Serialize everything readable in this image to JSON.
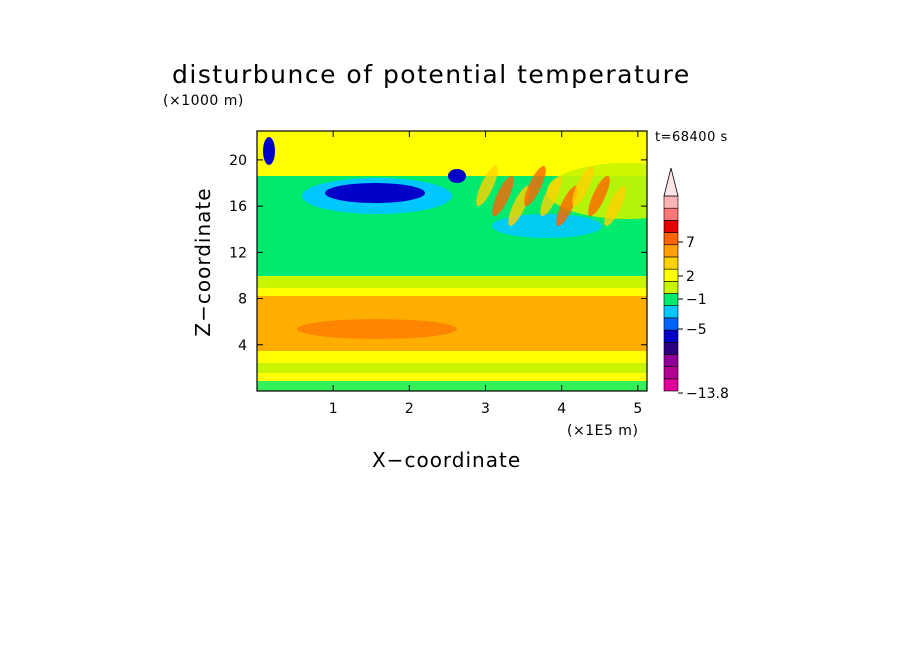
{
  "chart_data": {
    "type": "heatmap",
    "title": "disturbunce of potential temperature",
    "xlabel": "X−coordinate",
    "ylabel": "Z−coordinate",
    "x_unit": "(×1E5 m)",
    "y_unit": "(×1000 m)",
    "time_label": "t=68400 s",
    "xlim": [
      0,
      5.12
    ],
    "ylim": [
      0,
      22.5
    ],
    "x_ticks": [
      "1",
      "2",
      "3",
      "4",
      "5"
    ],
    "y_ticks": [
      "4",
      "8",
      "12",
      "16",
      "20"
    ],
    "colorbar": {
      "labels": [
        "7",
        "2",
        "−1",
        "−5",
        "−13.8"
      ],
      "max_value": 13.8,
      "min_value": -13.8,
      "extend_top": true,
      "colors": [
        "#e2009b",
        "#b20091",
        "#900097",
        "#2a0080",
        "#0000c8",
        "#0064ff",
        "#00c8ff",
        "#00eb6e",
        "#c8f500",
        "#ffff00",
        "#ffd200",
        "#ffa000",
        "#ff6400",
        "#e60000",
        "#ff7878",
        "#ffb4b4"
      ]
    },
    "field_description_colors": {
      "upper_band_green": "#00eb6e",
      "mid_band_yellow": "#ffff00",
      "lower_band_orange": "#ffa000",
      "cold_core": "#0000c8",
      "warm_waves": "#ff6400"
    }
  }
}
